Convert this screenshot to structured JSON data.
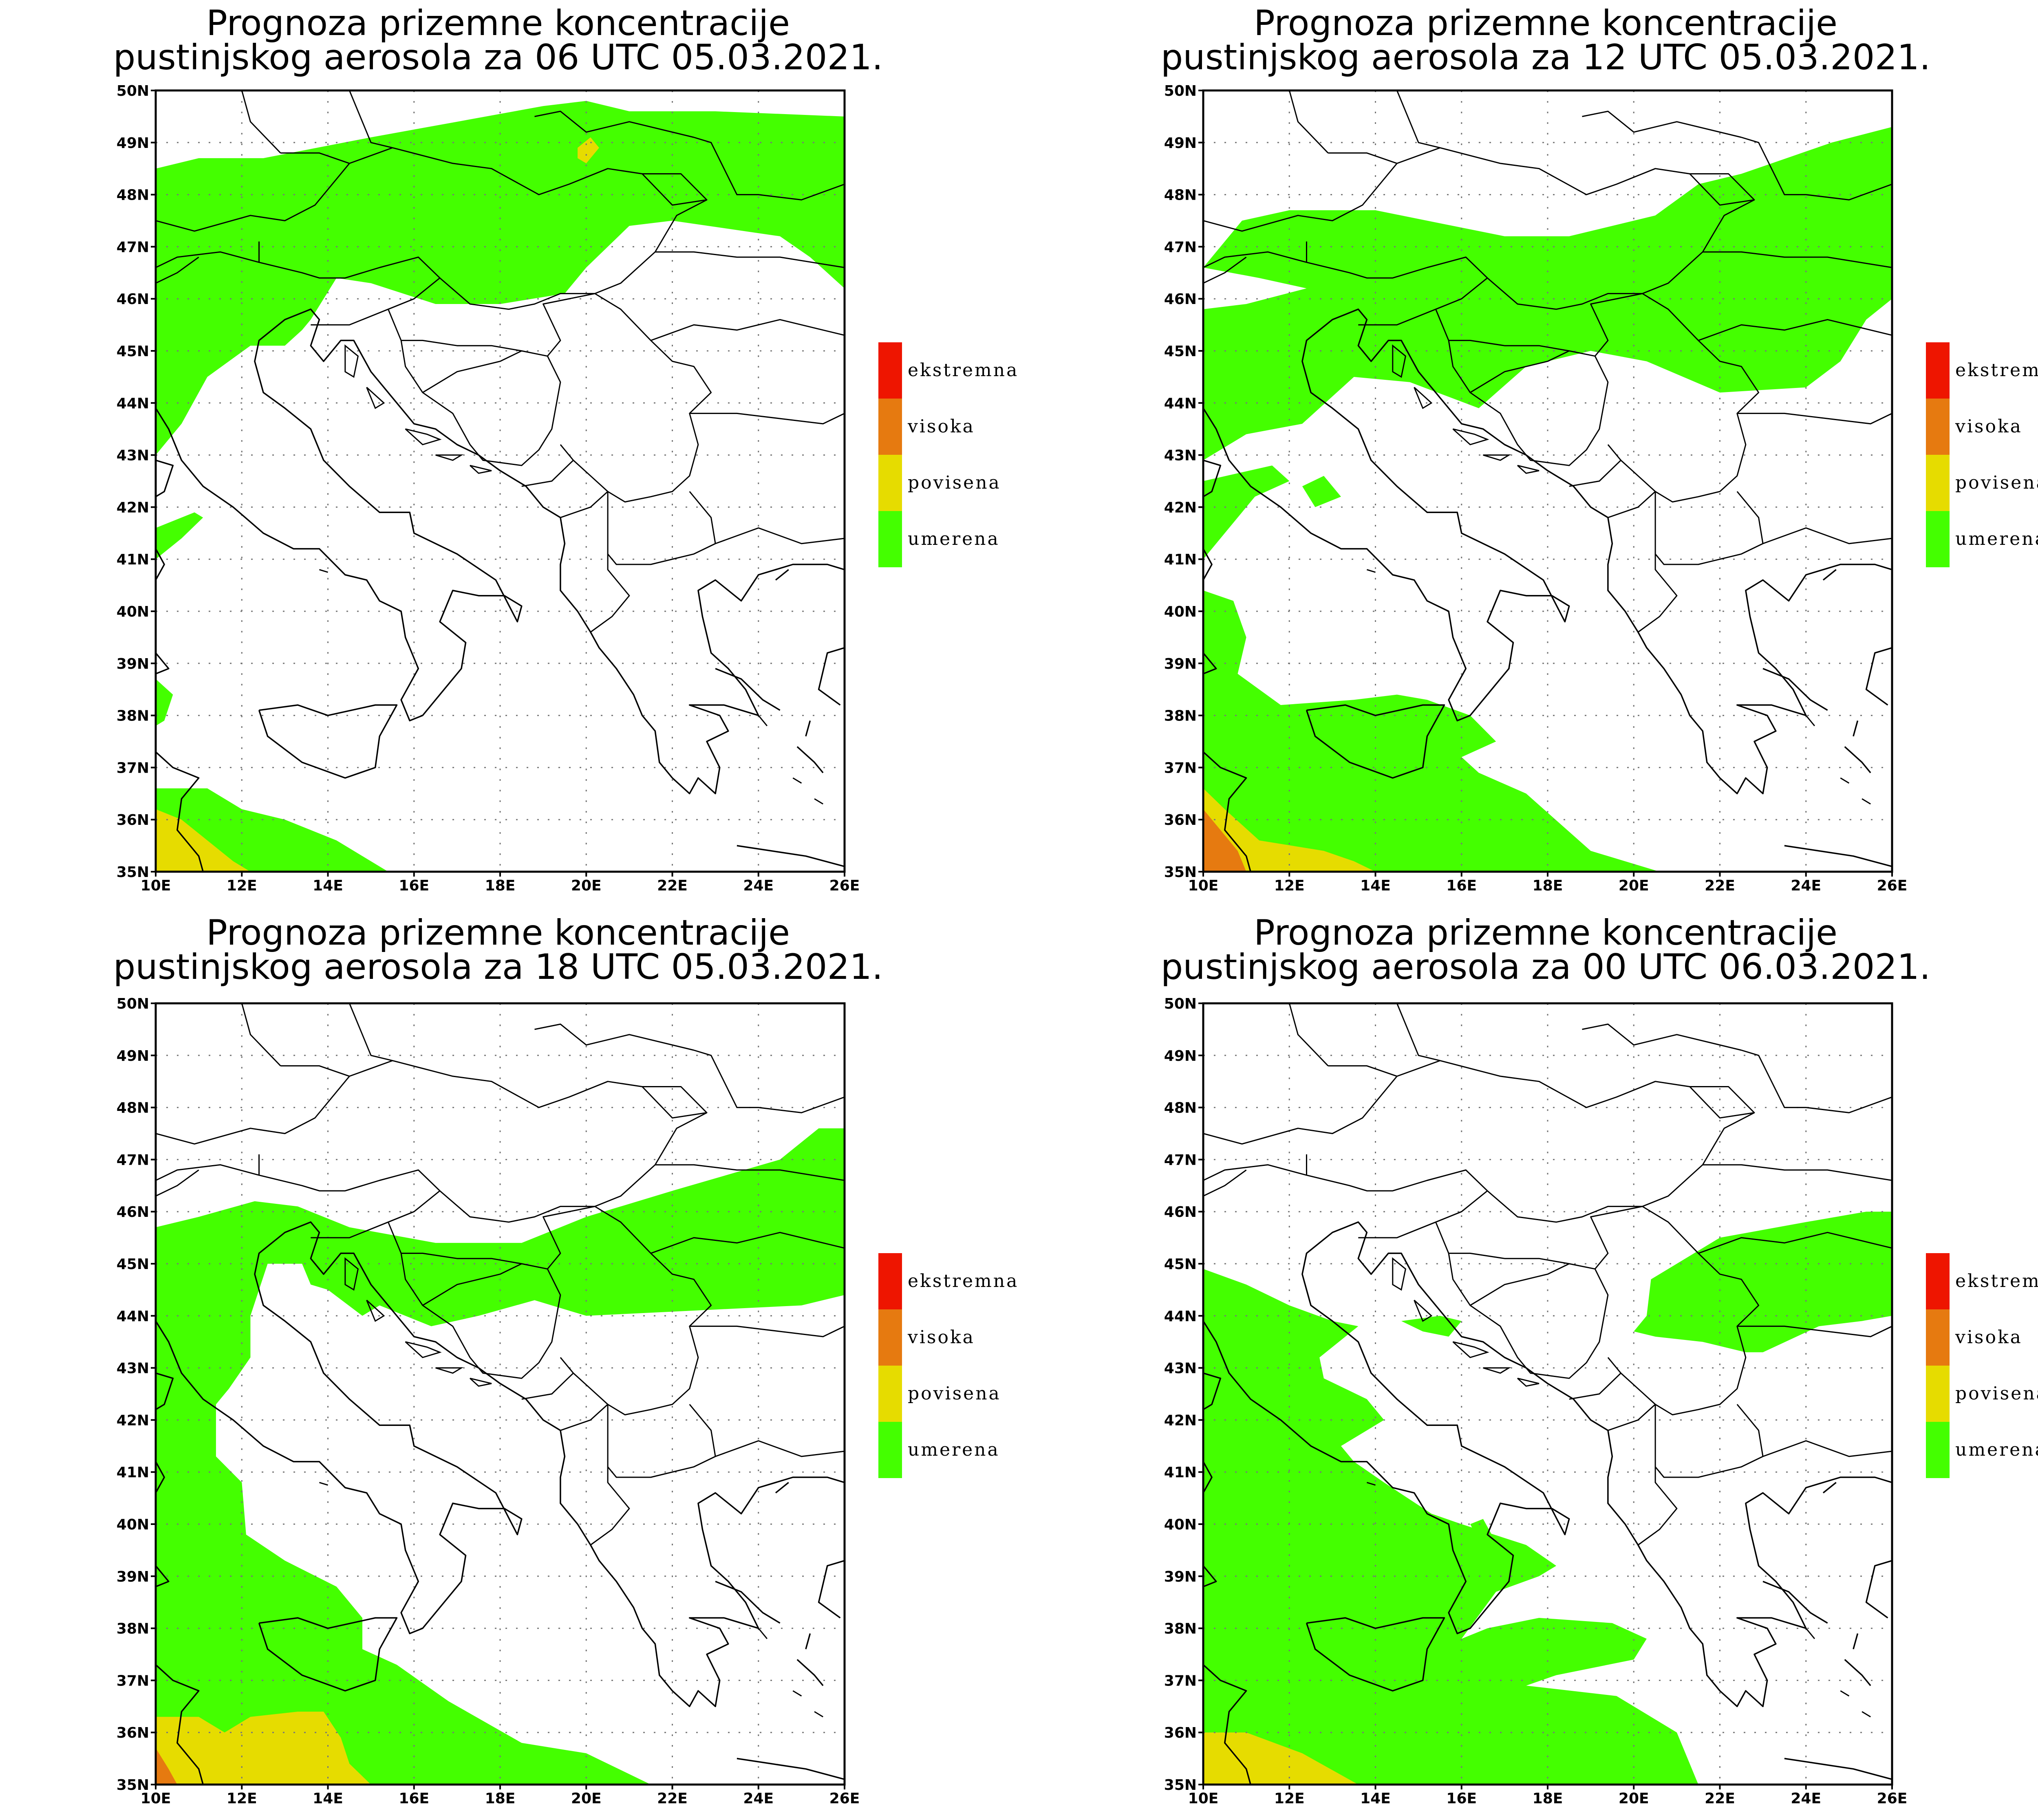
{
  "colors": {
    "umerena": "#44ff00",
    "povisena": "#e6dc00",
    "visoka": "#e67a10",
    "ekstremna": "#ee1500",
    "grid": "#777777",
    "border": "#000000"
  },
  "legend": [
    {
      "key": "ekstremna",
      "label": "ekstremna"
    },
    {
      "key": "visoka",
      "label": "visoka"
    },
    {
      "key": "povisena",
      "label": "povisena"
    },
    {
      "key": "umerena",
      "label": "umerena"
    }
  ],
  "axes": {
    "lon_ticks": [
      "10E",
      "12E",
      "14E",
      "16E",
      "18E",
      "20E",
      "22E",
      "24E",
      "26E"
    ],
    "lat_ticks": [
      "35N",
      "36N",
      "37N",
      "38N",
      "39N",
      "40N",
      "41N",
      "42N",
      "43N",
      "44N",
      "45N",
      "46N",
      "47N",
      "48N",
      "49N",
      "50N"
    ]
  },
  "panels": [
    {
      "title_line1": "Prognoza prizemne koncentracije",
      "title_line2": "pustinjskog aerosola za 06 UTC 05.03.2021.",
      "regions": [
        {
          "level": "umerena",
          "coords": [
            [
              10,
              48.5
            ],
            [
              11,
              48.7
            ],
            [
              12.5,
              48.7
            ],
            [
              15,
              49.1
            ],
            [
              17,
              49.4
            ],
            [
              19,
              49.7
            ],
            [
              20,
              49.8
            ],
            [
              21,
              49.6
            ],
            [
              23,
              49.6
            ],
            [
              26,
              49.5
            ],
            [
              26,
              46.2
            ],
            [
              25.2,
              46.8
            ],
            [
              24.5,
              47.2
            ],
            [
              22,
              47.5
            ],
            [
              21,
              47.4
            ],
            [
              20,
              46.6
            ],
            [
              19.5,
              46.1
            ],
            [
              18,
              45.9
            ],
            [
              16.5,
              45.9
            ],
            [
              15,
              46.3
            ],
            [
              14.2,
              46.4
            ],
            [
              13.6,
              45.6
            ],
            [
              13.4,
              45.4
            ],
            [
              13,
              45.1
            ],
            [
              12.2,
              45.1
            ],
            [
              11.2,
              44.5
            ],
            [
              10.6,
              43.6
            ],
            [
              10,
              43
            ]
          ]
        },
        {
          "level": "umerena",
          "coords": [
            [
              10,
              41
            ],
            [
              10.6,
              41.4
            ],
            [
              11.1,
              41.8
            ],
            [
              10.9,
              41.9
            ],
            [
              10,
              41.6
            ]
          ]
        },
        {
          "level": "umerena",
          "coords": [
            [
              10,
              38.7
            ],
            [
              10.4,
              38.4
            ],
            [
              10.2,
              37.9
            ],
            [
              10,
              37.8
            ]
          ]
        },
        {
          "level": "umerena",
          "coords": [
            [
              10,
              36.6
            ],
            [
              11.2,
              36.6
            ],
            [
              12,
              36.2
            ],
            [
              13,
              36.0
            ],
            [
              14.2,
              35.6
            ],
            [
              15.4,
              35
            ]
          ]
        },
        {
          "level": "povisena",
          "coords": [
            [
              19.8,
              48.9
            ],
            [
              20.1,
              49.1
            ],
            [
              20.3,
              48.9
            ],
            [
              20.0,
              48.6
            ],
            [
              19.8,
              48.7
            ]
          ]
        },
        {
          "level": "povisena",
          "coords": [
            [
              10,
              36.2
            ],
            [
              10.6,
              36.0
            ],
            [
              11.2,
              35.6
            ],
            [
              11.8,
              35.2
            ],
            [
              12.2,
              35
            ]
          ]
        }
      ]
    },
    {
      "title_line1": "Prognoza prizemne koncentracije",
      "title_line2": "pustinjskog aerosola za 12 UTC 05.03.2021.",
      "regions": [
        {
          "level": "umerena",
          "coords": [
            [
              10,
              46.6
            ],
            [
              10.9,
              47.5
            ],
            [
              12,
              47.7
            ],
            [
              14,
              47.7
            ],
            [
              15.2,
              47.5
            ],
            [
              17,
              47.2
            ],
            [
              18.5,
              47.2
            ],
            [
              20.5,
              47.6
            ],
            [
              21.5,
              48.2
            ],
            [
              22.5,
              48.4
            ],
            [
              24.6,
              49.0
            ],
            [
              26,
              49.3
            ],
            [
              26,
              46
            ],
            [
              25.4,
              45.6
            ],
            [
              24.8,
              44.8
            ],
            [
              24,
              44.3
            ],
            [
              22,
              44.2
            ],
            [
              20.3,
              44.8
            ],
            [
              19,
              45
            ],
            [
              17.5,
              44.7
            ],
            [
              16.4,
              43.9
            ],
            [
              14.8,
              44.4
            ],
            [
              13.5,
              44.5
            ],
            [
              12.3,
              43.6
            ],
            [
              11,
              43.4
            ],
            [
              10,
              42.9
            ],
            [
              10,
              45.8
            ],
            [
              11,
              45.9
            ],
            [
              12.4,
              46.2
            ],
            [
              11.3,
              46.4
            ]
          ]
        },
        {
          "level": "umerena",
          "coords": [
            [
              10,
              41
            ],
            [
              10.6,
              41.6
            ],
            [
              11.2,
              42.2
            ],
            [
              12.0,
              42.5
            ],
            [
              11.6,
              42.8
            ],
            [
              10,
              42.5
            ]
          ]
        },
        {
          "level": "umerena",
          "coords": [
            [
              12.3,
              42.4
            ],
            [
              12.8,
              42.6
            ],
            [
              13.2,
              42.2
            ],
            [
              12.6,
              42.0
            ]
          ]
        },
        {
          "level": "umerena",
          "coords": [
            [
              10,
              40.4
            ],
            [
              10.7,
              40.2
            ],
            [
              11.0,
              39.5
            ],
            [
              10.8,
              38.8
            ],
            [
              11.8,
              38.2
            ],
            [
              13.5,
              38.3
            ],
            [
              14.5,
              38.4
            ],
            [
              15.2,
              38.3
            ],
            [
              16.2,
              38.0
            ],
            [
              16.8,
              37.5
            ],
            [
              16.0,
              37.2
            ],
            [
              16.4,
              36.9
            ],
            [
              17.5,
              36.5
            ],
            [
              19,
              35.4
            ],
            [
              20.6,
              35
            ]
          ]
        },
        {
          "level": "povisena",
          "coords": [
            [
              10,
              36.6
            ],
            [
              10.5,
              36.2
            ],
            [
              11.3,
              35.6
            ],
            [
              12.8,
              35.4
            ],
            [
              13.5,
              35.2
            ],
            [
              14,
              35
            ]
          ]
        },
        {
          "level": "visoka",
          "coords": [
            [
              10,
              36.2
            ],
            [
              10.4,
              35.8
            ],
            [
              10.8,
              35.4
            ],
            [
              11,
              35
            ]
          ]
        }
      ]
    },
    {
      "title_line1": "Prognoza prizemne koncentracije",
      "title_line2": "pustinjskog aerosola za 18 UTC 05.03.2021.",
      "regions": [
        {
          "level": "umerena",
          "coords": [
            [
              10,
              45.7
            ],
            [
              11,
              45.9
            ],
            [
              12.3,
              46.2
            ],
            [
              13.3,
              46.1
            ],
            [
              14.5,
              45.7
            ],
            [
              16.5,
              45.4
            ],
            [
              18.5,
              45.4
            ],
            [
              20,
              45.9
            ],
            [
              22,
              46.4
            ],
            [
              24.5,
              47.0
            ],
            [
              25.4,
              47.6
            ],
            [
              26,
              47.6
            ],
            [
              26,
              44.4
            ],
            [
              25,
              44.2
            ],
            [
              22.5,
              44.1
            ],
            [
              20,
              44.0
            ],
            [
              18.8,
              44.3
            ],
            [
              17.5,
              44.0
            ],
            [
              16.4,
              43.8
            ],
            [
              15.2,
              44.2
            ],
            [
              14.8,
              44.0
            ],
            [
              14.0,
              44.5
            ],
            [
              13.6,
              44.6
            ],
            [
              13.4,
              45.0
            ],
            [
              12.6,
              45.0
            ],
            [
              12.2,
              44.0
            ],
            [
              12.2,
              43.2
            ],
            [
              11.7,
              42.6
            ],
            [
              11.4,
              42.3
            ],
            [
              11.4,
              41.3
            ],
            [
              12.0,
              40.8
            ],
            [
              12.1,
              39.8
            ],
            [
              13.0,
              39.3
            ],
            [
              14.2,
              38.8
            ],
            [
              14.8,
              38.2
            ],
            [
              14.8,
              37.6
            ],
            [
              15.6,
              37.3
            ],
            [
              16.8,
              36.6
            ],
            [
              18.5,
              35.8
            ],
            [
              20,
              35.6
            ],
            [
              21.5,
              35
            ]
          ]
        },
        {
          "level": "povisena",
          "coords": [
            [
              10,
              36.3
            ],
            [
              11,
              36.3
            ],
            [
              11.6,
              36.0
            ],
            [
              12.2,
              36.3
            ],
            [
              13.3,
              36.4
            ],
            [
              13.9,
              36.4
            ],
            [
              14.3,
              35.9
            ],
            [
              14.5,
              35.4
            ],
            [
              15,
              35
            ]
          ]
        },
        {
          "level": "visoka",
          "coords": [
            [
              10,
              35.7
            ],
            [
              10.3,
              35.3
            ],
            [
              10.5,
              35
            ]
          ]
        }
      ]
    },
    {
      "title_line1": "Prognoza prizemne koncentracije",
      "title_line2": "pustinjskog aerosola za 00 UTC 06.03.2021.",
      "regions": [
        {
          "level": "umerena",
          "coords": [
            [
              10,
              44.9
            ],
            [
              11,
              44.6
            ],
            [
              12,
              44.2
            ],
            [
              13,
              43.9
            ],
            [
              13.6,
              43.8
            ],
            [
              12.7,
              43.2
            ],
            [
              12.8,
              42.8
            ],
            [
              13.8,
              42.4
            ],
            [
              14.2,
              42.0
            ],
            [
              13.8,
              41.8
            ],
            [
              13.2,
              41.5
            ],
            [
              13.5,
              41.2
            ],
            [
              14.2,
              40.8
            ],
            [
              15.3,
              40.2
            ],
            [
              16.0,
              40
            ],
            [
              17.5,
              39.6
            ],
            [
              18.2,
              39.2
            ],
            [
              17.8,
              39.0
            ],
            [
              16.8,
              38.7
            ],
            [
              16.0,
              37.8
            ],
            [
              16.6,
              38.0
            ],
            [
              17.8,
              38.2
            ],
            [
              19.5,
              38.1
            ],
            [
              20.3,
              37.8
            ],
            [
              20.0,
              37.4
            ],
            [
              18.2,
              37.1
            ],
            [
              17.5,
              36.9
            ],
            [
              19.6,
              36.7
            ],
            [
              21,
              36.0
            ],
            [
              21.5,
              35
            ]
          ]
        },
        {
          "level": "umerena",
          "coords": [
            [
              20,
              43.7
            ],
            [
              20.3,
              44.0
            ],
            [
              20.4,
              44.7
            ],
            [
              22,
              45.5
            ],
            [
              24,
              45.8
            ],
            [
              25.4,
              46.0
            ],
            [
              26,
              46
            ],
            [
              26,
              44.0
            ],
            [
              25.3,
              43.9
            ],
            [
              24.3,
              43.8
            ],
            [
              23.0,
              43.3
            ],
            [
              22.6,
              43.3
            ],
            [
              21.6,
              43.5
            ],
            [
              20.5,
              43.6
            ]
          ]
        },
        {
          "level": "umerena",
          "coords": [
            [
              14.6,
              43.9
            ],
            [
              15.5,
              44.0
            ],
            [
              16.0,
              43.9
            ],
            [
              15.7,
              43.6
            ],
            [
              15.1,
              43.7
            ]
          ]
        },
        {
          "level": "umerena",
          "coords": [
            [
              16.2,
              40
            ],
            [
              16.5,
              40.1
            ],
            [
              16.7,
              39.8
            ],
            [
              16.4,
              39.7
            ]
          ]
        },
        {
          "level": "povisena",
          "coords": [
            [
              10,
              36.0
            ],
            [
              11,
              36.0
            ],
            [
              12.3,
              35.6
            ],
            [
              13.6,
              35
            ],
            [
              14,
              35
            ]
          ]
        }
      ]
    }
  ]
}
